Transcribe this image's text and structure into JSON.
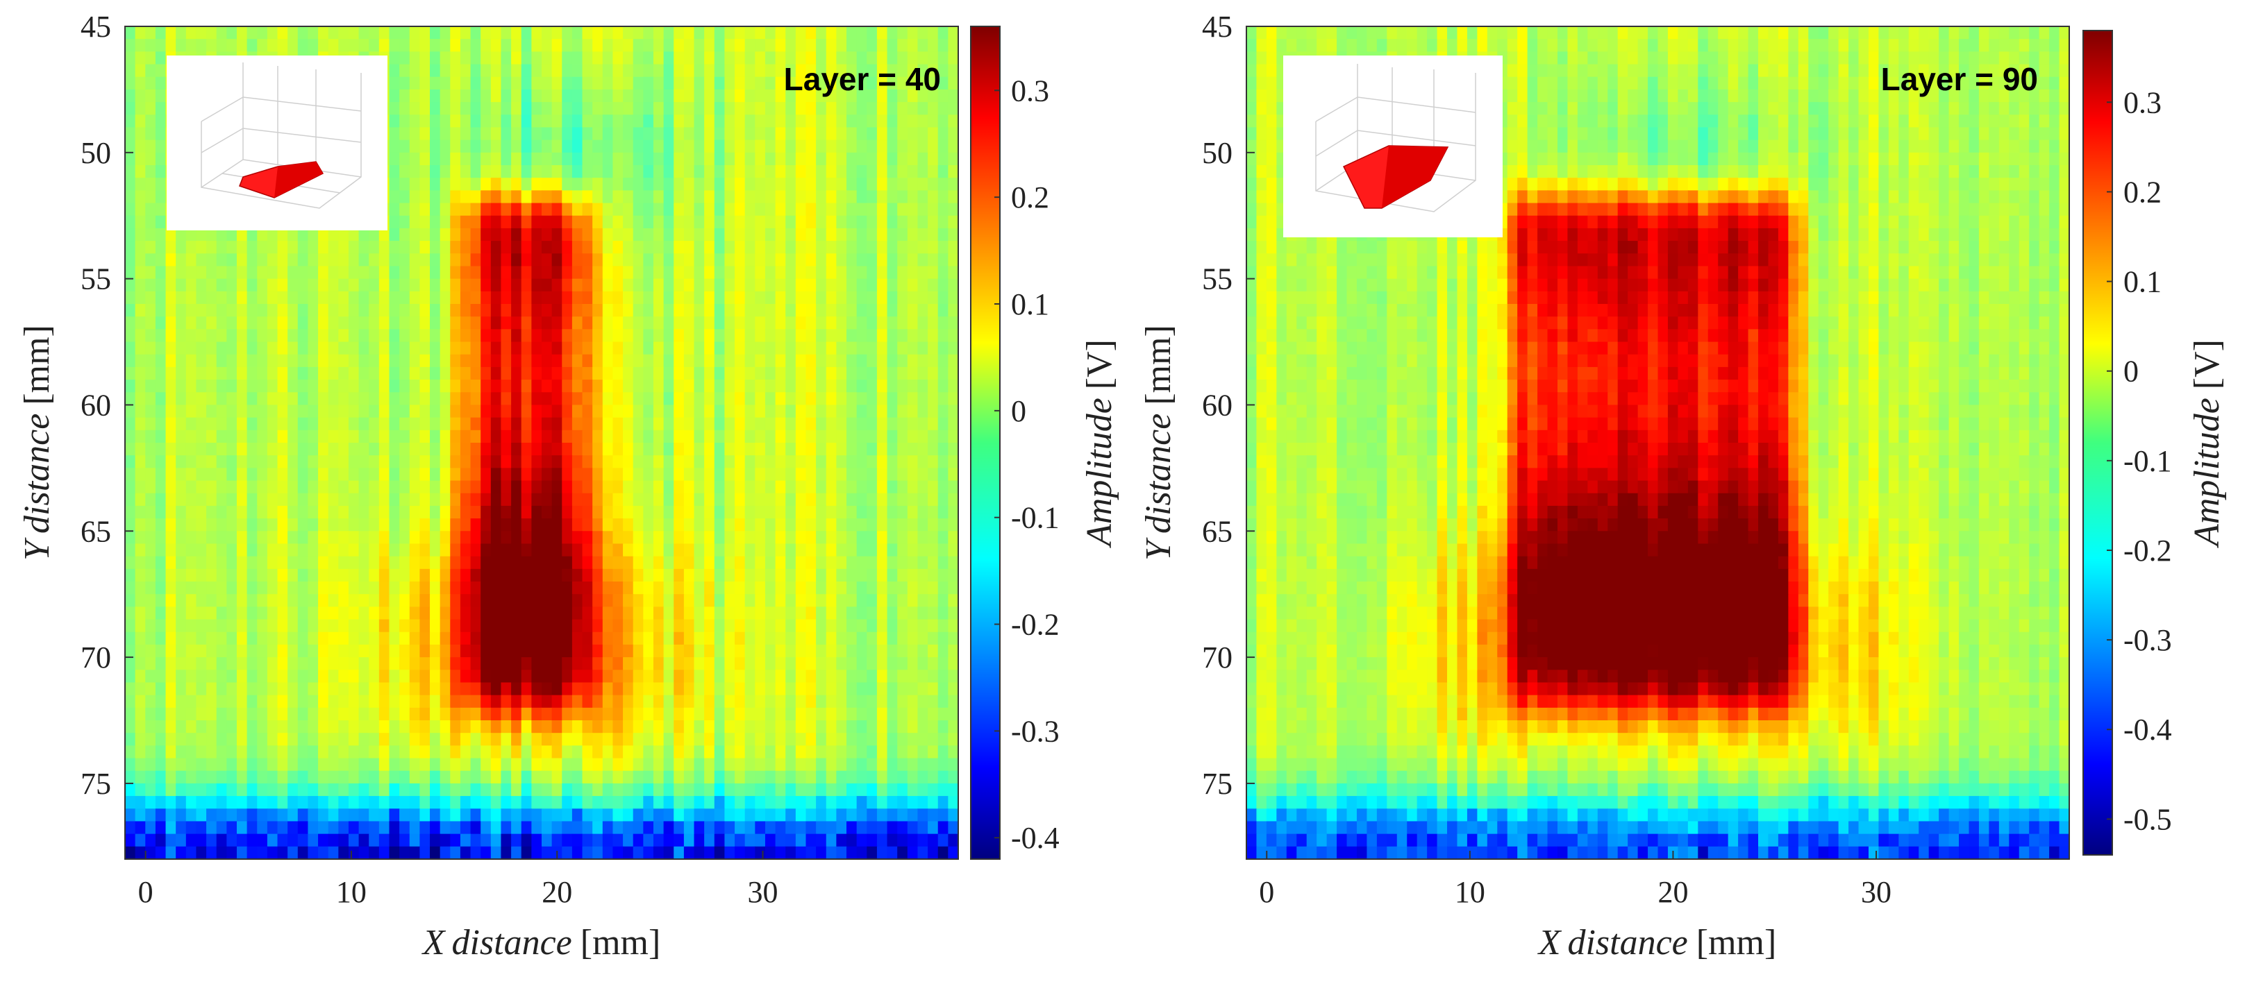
{
  "chart_data": [
    {
      "type": "heatmap",
      "title": "Layer = 40",
      "xlabel": {
        "var": "X",
        "word": "distance",
        "unit": "[mm]"
      },
      "ylabel": {
        "var": "Y",
        "word": "distance",
        "unit": "[mm]"
      },
      "colorbar_label": {
        "word": "Amplitude",
        "unit": "[V]"
      },
      "xlim": [
        -1,
        39.5
      ],
      "ylim": [
        45,
        78
      ],
      "x_ticks": [
        0,
        10,
        20,
        30
      ],
      "y_ticks": [
        45,
        50,
        55,
        60,
        65,
        70,
        75
      ],
      "clim": [
        -0.42,
        0.36
      ],
      "colorbar_ticks": [
        "0.3",
        "0.2",
        "0.1",
        "0",
        "-0.1",
        "-0.2",
        "-0.3",
        "-0.4"
      ],
      "colorbar_tick_values": [
        0.3,
        0.2,
        0.1,
        0,
        -0.1,
        -0.2,
        -0.3,
        -0.4
      ],
      "colormap": "jet",
      "features": {
        "background": 0.02,
        "hot_block": {
          "x": [
            15.5,
            21.5
          ],
          "y": [
            51.8,
            72.0
          ],
          "peak": 0.34
        },
        "bottom_glow": {
          "x": [
            11,
            26
          ],
          "y": [
            66,
            73
          ],
          "level": 0.12
        },
        "top_band": {
          "y": [
            76,
            78
          ],
          "level": -0.35
        }
      },
      "inset": {
        "shape": "red wedge",
        "color": "#ff1a1a"
      }
    },
    {
      "type": "heatmap",
      "title": "Layer = 90",
      "xlabel": {
        "var": "X",
        "word": "distance",
        "unit": "[mm]"
      },
      "ylabel": {
        "var": "Y",
        "word": "distance",
        "unit": "[mm]"
      },
      "colorbar_label": {
        "word": "Amplitude",
        "unit": "[V]"
      },
      "xlim": [
        -1,
        39.5
      ],
      "ylim": [
        45,
        78
      ],
      "x_ticks": [
        0,
        10,
        20,
        30
      ],
      "y_ticks": [
        45,
        50,
        55,
        60,
        65,
        70,
        75
      ],
      "clim": [
        -0.54,
        0.38
      ],
      "colorbar_ticks": [
        "0.3",
        "0.2",
        "0.1",
        "0",
        "-0.1",
        "-0.2",
        "-0.3",
        "-0.4",
        "-0.5"
      ],
      "colorbar_tick_values": [
        0.3,
        0.2,
        0.1,
        0,
        -0.1,
        -0.2,
        -0.3,
        -0.4,
        -0.5
      ],
      "colormap": "jet",
      "features": {
        "background": -0.02,
        "hot_block": {
          "x": [
            12.0,
            26.0
          ],
          "y": [
            51.8,
            72.0
          ],
          "peak": 0.36
        },
        "bottom_glow": {
          "x": [
            7,
            31
          ],
          "y": [
            66,
            73
          ],
          "level": 0.12
        },
        "top_band": {
          "y": [
            76,
            78
          ],
          "level": -0.4
        }
      },
      "inset": {
        "shape": "red wedge",
        "color": "#ff1a1a"
      }
    }
  ]
}
